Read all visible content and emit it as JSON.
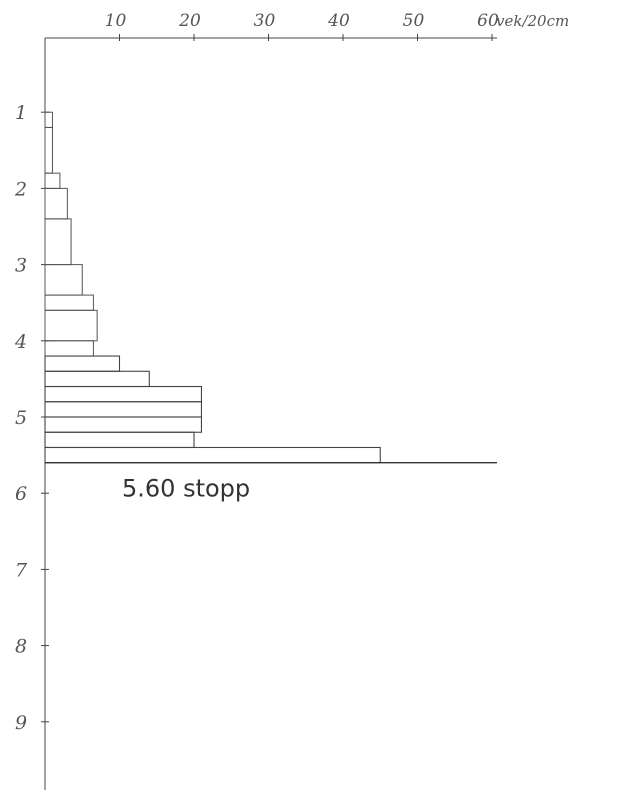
{
  "chart_data": {
    "type": "bar",
    "x_axis": {
      "label": "vek/20cm",
      "ticks": [
        10,
        20,
        30,
        40,
        50,
        60
      ],
      "range": [
        0,
        60
      ],
      "position": "top"
    },
    "y_axis": {
      "label": "",
      "ticks": [
        1,
        2,
        3,
        4,
        5,
        6,
        7,
        8,
        9
      ],
      "range": [
        0,
        10
      ],
      "direction": "downward"
    },
    "profile": [
      {
        "depth_from": 1.0,
        "depth_to": 1.2,
        "blows": 1
      },
      {
        "depth_from": 1.2,
        "depth_to": 1.8,
        "blows": 1
      },
      {
        "depth_from": 1.8,
        "depth_to": 2.0,
        "blows": 2
      },
      {
        "depth_from": 2.0,
        "depth_to": 2.4,
        "blows": 3
      },
      {
        "depth_from": 2.4,
        "depth_to": 3.0,
        "blows": 3.5
      },
      {
        "depth_from": 3.0,
        "depth_to": 3.4,
        "blows": 5
      },
      {
        "depth_from": 3.4,
        "depth_to": 3.6,
        "blows": 6.5
      },
      {
        "depth_from": 3.6,
        "depth_to": 4.0,
        "blows": 7
      },
      {
        "depth_from": 4.0,
        "depth_to": 4.2,
        "blows": 6.5
      },
      {
        "depth_from": 4.2,
        "depth_to": 4.4,
        "blows": 10
      },
      {
        "depth_from": 4.4,
        "depth_to": 4.6,
        "blows": 14
      },
      {
        "depth_from": 4.6,
        "depth_to": 4.8,
        "blows": 21
      },
      {
        "depth_from": 4.8,
        "depth_to": 5.0,
        "blows": 21
      },
      {
        "depth_from": 5.0,
        "depth_to": 5.2,
        "blows": 21
      },
      {
        "depth_from": 5.2,
        "depth_to": 5.4,
        "blows": 20
      },
      {
        "depth_from": 5.4,
        "depth_to": 5.6,
        "blows": 45
      }
    ],
    "stop": {
      "depth": 5.6,
      "label": "5.60 stopp"
    }
  }
}
